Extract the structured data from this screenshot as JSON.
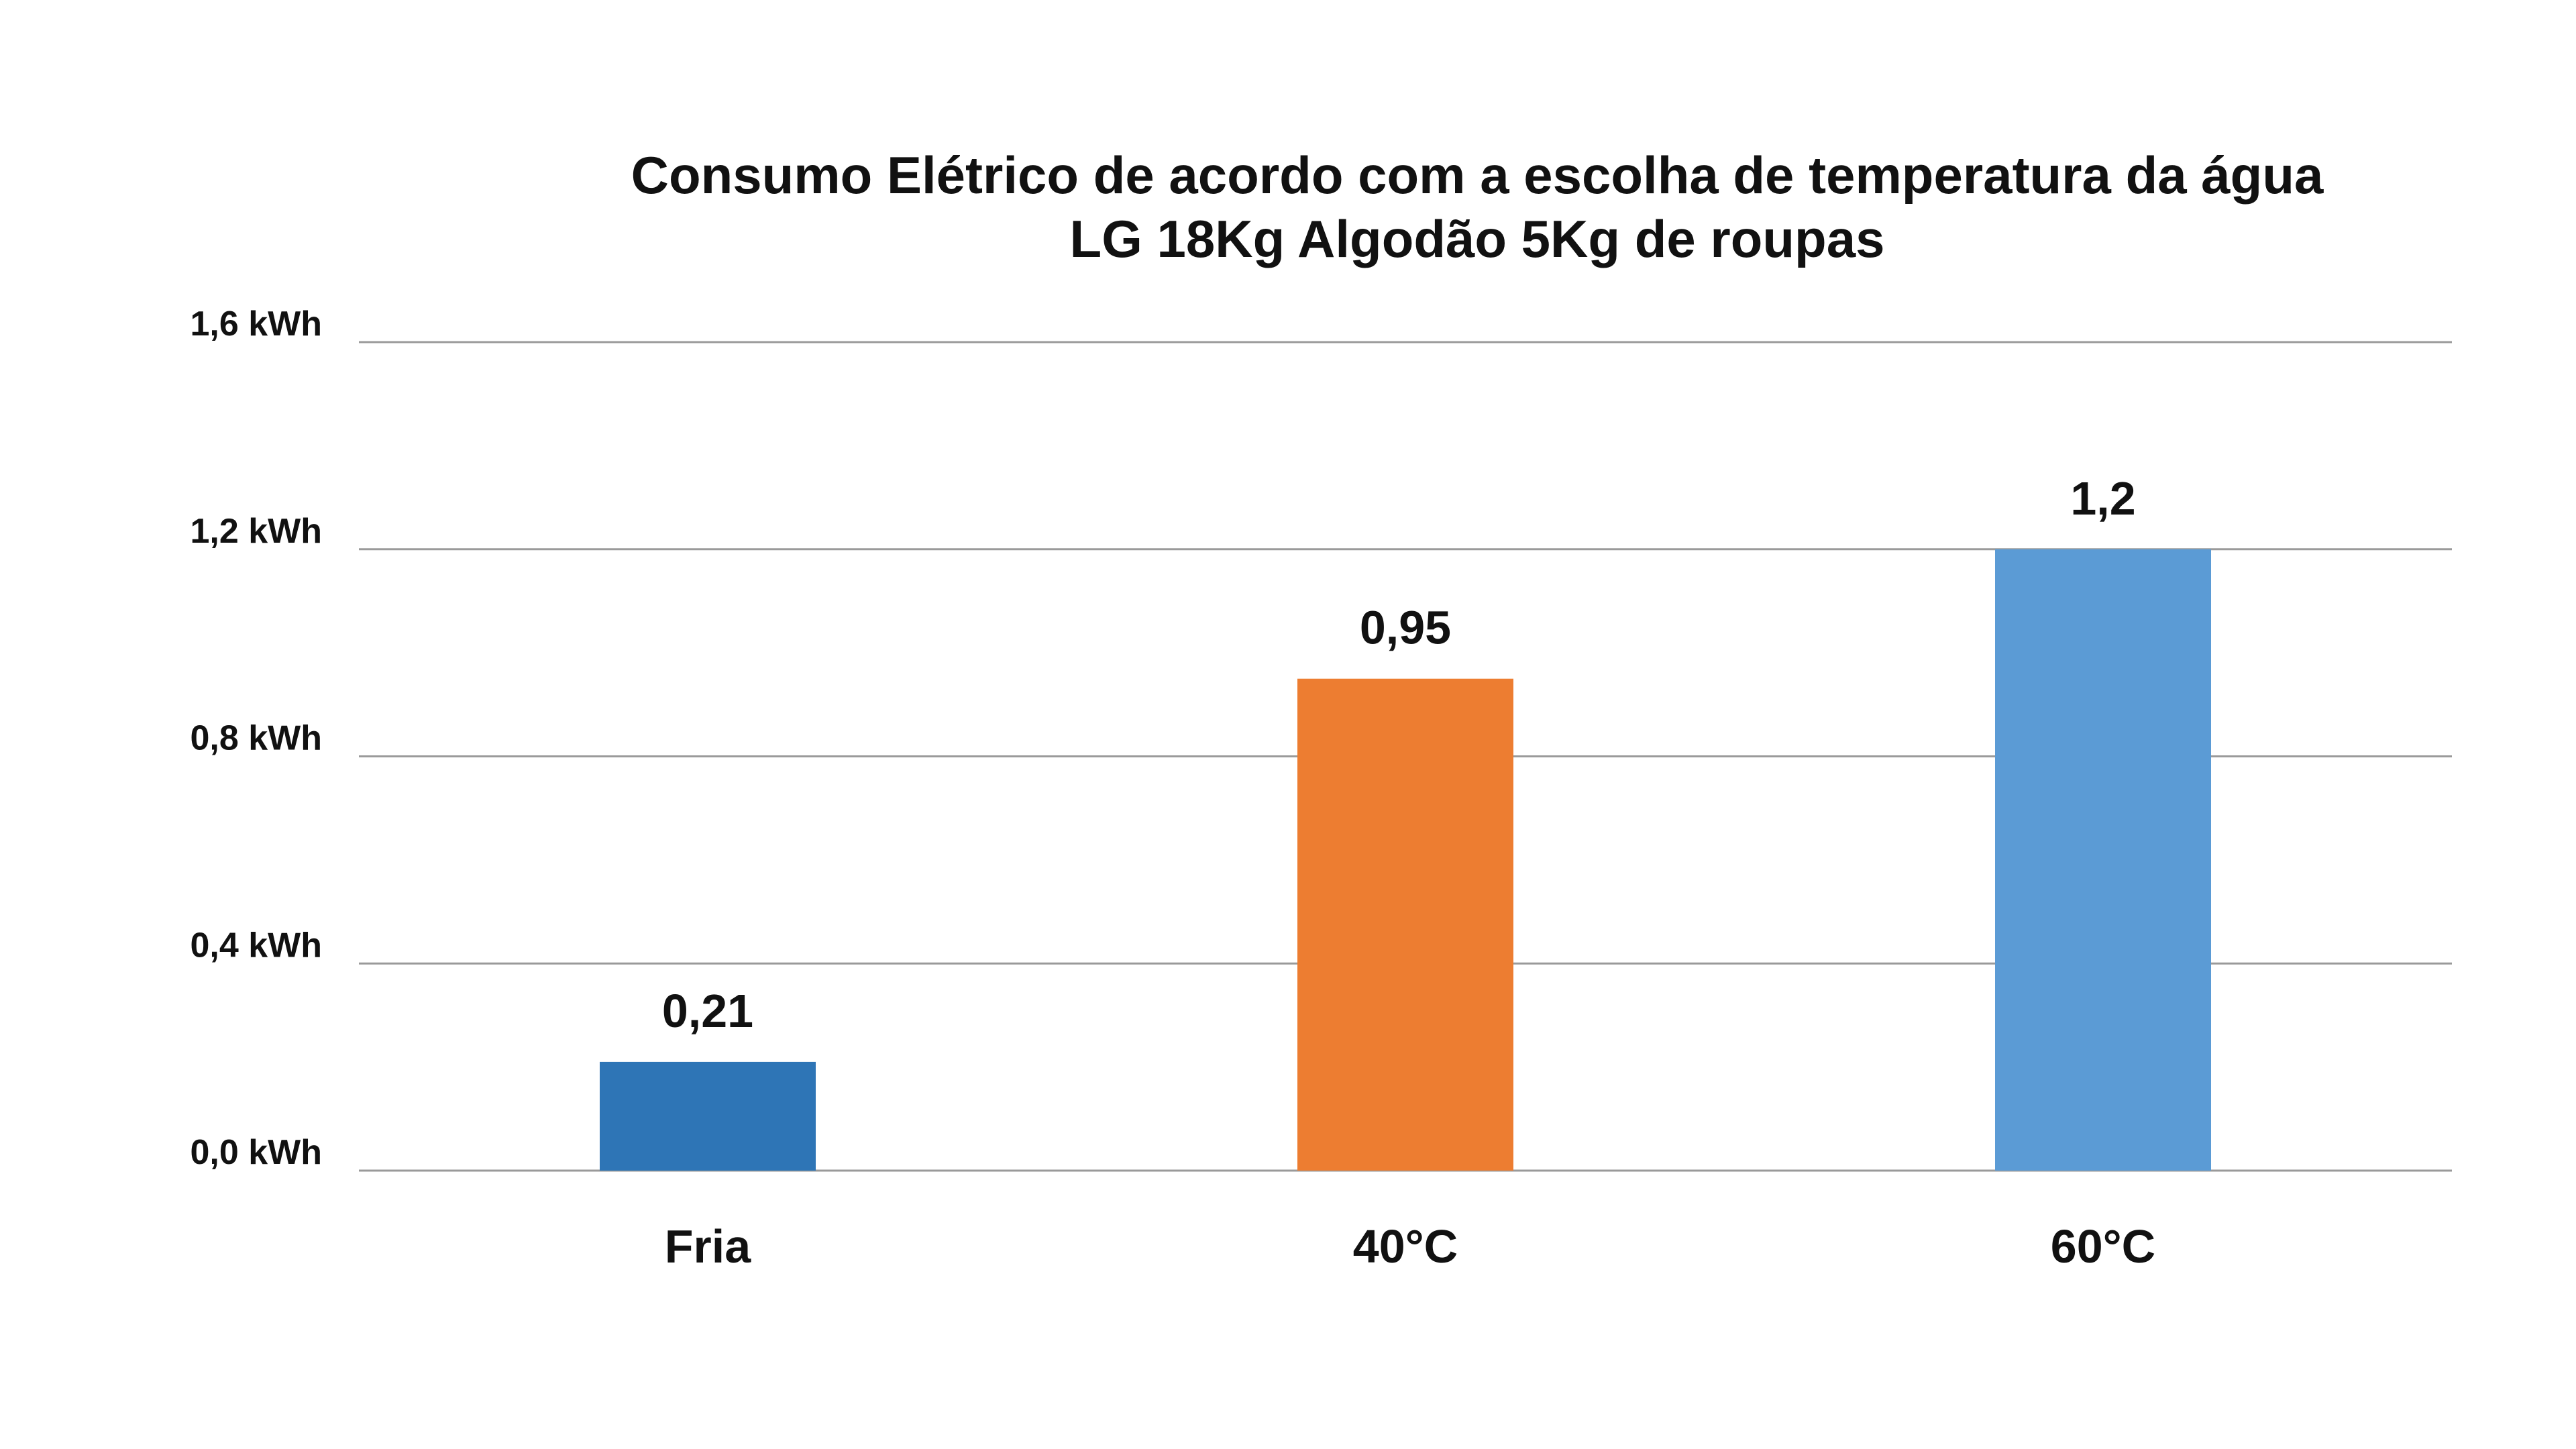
{
  "chart_data": {
    "type": "bar",
    "title": "Consumo Elétrico de acordo com a escolha de temperatura da água",
    "subtitle": "LG 18Kg Algodão 5Kg de roupas",
    "categories": [
      "Fria",
      "40°C",
      "60°C"
    ],
    "values": [
      0.21,
      0.95,
      1.2
    ],
    "data_labels": [
      "0,21",
      "0,95",
      "1,2"
    ],
    "colors": [
      "#2e75b6",
      "#ed7d31",
      "#5b9bd5"
    ],
    "ylim": [
      0,
      1.6
    ],
    "y_ticks": [
      {
        "value": 0.0,
        "label": "0,0 kWh"
      },
      {
        "value": 0.4,
        "label": "0,4 kWh"
      },
      {
        "value": 0.8,
        "label": "0,8 kWh"
      },
      {
        "value": 1.2,
        "label": "1,2 kWh"
      },
      {
        "value": 1.6,
        "label": "1,6 kWh"
      }
    ],
    "xlabel": "",
    "ylabel": "",
    "grid": true,
    "legend": "none"
  }
}
